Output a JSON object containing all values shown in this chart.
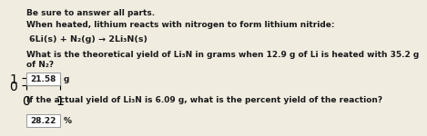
{
  "bg_color": "#f0ece0",
  "text_color": "#1a1a1a",
  "title_bold": "Be sure to answer all parts.",
  "line1_bold": "When heated, lithium reacts with nitrogen to form lithium nitride:",
  "equation": "6Li(s) + N₂(g) → 2Li₃N(s)",
  "question1a": "What is the theoretical yield of Li₃N in grams when 12.9 g of Li is heated with 35.2 g",
  "question1b": "of N₂?",
  "answer1": "21.58",
  "unit1": "g",
  "question2": "If the actual yield of Li₃N is 6.09 g, what is the percent yield of the reaction?",
  "answer2": "28.22",
  "unit2": "%",
  "box_facecolor": "#ffffff",
  "box_edgecolor": "#999999"
}
